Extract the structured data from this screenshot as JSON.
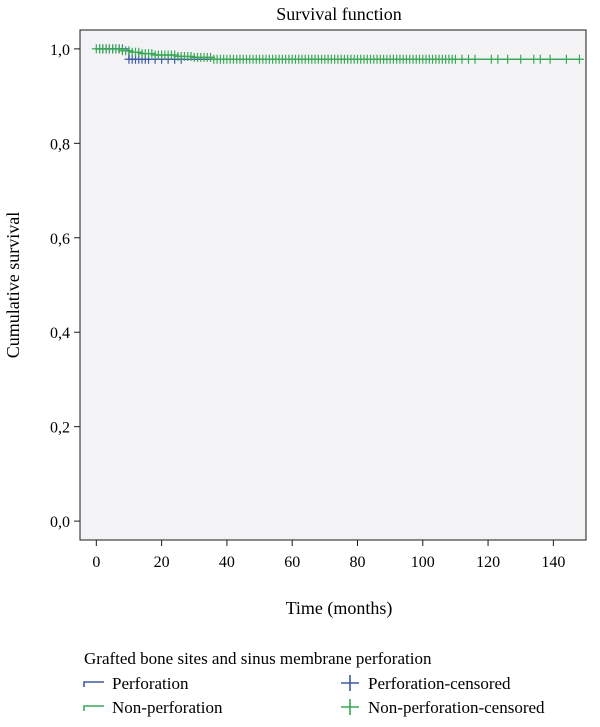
{
  "chart_data": {
    "type": "line",
    "title": "Survival function",
    "xlabel": "Time (months)",
    "ylabel": "Cumulative survival",
    "xlim": [
      -5,
      150
    ],
    "ylim": [
      -0.04,
      1.04
    ],
    "x_ticks": [
      0,
      20,
      40,
      60,
      80,
      100,
      120,
      140
    ],
    "x_tick_labels": [
      "0",
      "20",
      "40",
      "60",
      "80",
      "100",
      "120",
      "140"
    ],
    "y_ticks": [
      0.0,
      0.2,
      0.4,
      0.6,
      0.8,
      1.0
    ],
    "y_tick_labels": [
      "0,0",
      "0,2",
      "0,4",
      "0,6",
      "0,8",
      "1,0"
    ],
    "grid": false,
    "plot_background": "#f3f3f5",
    "legend": {
      "title": "Grafted bone sites and sinus membrane perforation",
      "placement": "bottom",
      "entries": [
        {
          "label": "Perforation",
          "kind": "step",
          "color": "#3f58a8"
        },
        {
          "label": "Perforation-censored",
          "kind": "censor",
          "color": "#3f58a8"
        },
        {
          "label": "Non-perforation",
          "kind": "step",
          "color": "#3aa857"
        },
        {
          "label": "Non-perforation-censored",
          "kind": "censor",
          "color": "#3aa857"
        }
      ]
    },
    "series": [
      {
        "name": "Perforation",
        "color": "#3f58a8",
        "step_x": [
          0,
          9,
          10,
          148
        ],
        "step_y": [
          1.0,
          1.0,
          0.978,
          0.978
        ],
        "censored_x": [
          1,
          2,
          3,
          4,
          5,
          6,
          7,
          8,
          10,
          11,
          12,
          13,
          14,
          15,
          16,
          18,
          20,
          22,
          24,
          26
        ],
        "censored_y": [
          1.0,
          1.0,
          1.0,
          1.0,
          1.0,
          1.0,
          1.0,
          1.0,
          0.978,
          0.978,
          0.978,
          0.978,
          0.978,
          0.978,
          0.978,
          0.978,
          0.978,
          0.978,
          0.978,
          0.978
        ]
      },
      {
        "name": "Non-perforation",
        "color": "#3aa857",
        "step_x": [
          0,
          7,
          9,
          11,
          14,
          18,
          25,
          30,
          36,
          148
        ],
        "step_y": [
          1.0,
          1.0,
          0.996,
          0.993,
          0.99,
          0.987,
          0.984,
          0.982,
          0.978,
          0.978
        ],
        "censored_x": [
          0,
          1,
          2,
          3,
          4,
          5,
          6,
          7,
          8,
          9,
          10,
          11,
          12,
          13,
          14,
          15,
          16,
          17,
          18,
          19,
          20,
          21,
          22,
          23,
          24,
          25,
          26,
          27,
          28,
          29,
          30,
          31,
          32,
          33,
          34,
          35,
          36,
          37,
          38,
          39,
          40,
          41,
          42,
          43,
          44,
          45,
          46,
          47,
          48,
          49,
          50,
          51,
          52,
          53,
          54,
          55,
          56,
          57,
          58,
          59,
          60,
          61,
          62,
          63,
          64,
          65,
          66,
          67,
          68,
          69,
          70,
          71,
          72,
          73,
          74,
          75,
          76,
          77,
          78,
          79,
          80,
          81,
          82,
          83,
          84,
          85,
          86,
          87,
          88,
          89,
          90,
          91,
          92,
          93,
          94,
          95,
          96,
          97,
          98,
          99,
          100,
          101,
          102,
          103,
          104,
          105,
          106,
          107,
          108,
          109,
          110,
          112,
          114,
          116,
          121,
          123,
          126,
          130,
          134,
          136,
          139,
          144,
          148
        ],
        "censored_y": [
          1.0,
          1.0,
          1.0,
          1.0,
          1.0,
          1.0,
          1.0,
          1.0,
          0.996,
          0.996,
          0.996,
          0.993,
          0.993,
          0.993,
          0.99,
          0.99,
          0.99,
          0.99,
          0.987,
          0.987,
          0.987,
          0.987,
          0.987,
          0.987,
          0.987,
          0.984,
          0.984,
          0.984,
          0.984,
          0.984,
          0.982,
          0.982,
          0.982,
          0.982,
          0.982,
          0.982,
          0.978,
          0.978,
          0.978,
          0.978,
          0.978,
          0.978,
          0.978,
          0.978,
          0.978,
          0.978,
          0.978,
          0.978,
          0.978,
          0.978,
          0.978,
          0.978,
          0.978,
          0.978,
          0.978,
          0.978,
          0.978,
          0.978,
          0.978,
          0.978,
          0.978,
          0.978,
          0.978,
          0.978,
          0.978,
          0.978,
          0.978,
          0.978,
          0.978,
          0.978,
          0.978,
          0.978,
          0.978,
          0.978,
          0.978,
          0.978,
          0.978,
          0.978,
          0.978,
          0.978,
          0.978,
          0.978,
          0.978,
          0.978,
          0.978,
          0.978,
          0.978,
          0.978,
          0.978,
          0.978,
          0.978,
          0.978,
          0.978,
          0.978,
          0.978,
          0.978,
          0.978,
          0.978,
          0.978,
          0.978,
          0.978,
          0.978,
          0.978,
          0.978,
          0.978,
          0.978,
          0.978,
          0.978,
          0.978,
          0.978,
          0.978,
          0.978,
          0.978,
          0.978,
          0.978,
          0.978,
          0.978,
          0.978,
          0.978,
          0.978,
          0.978,
          0.978,
          0.978
        ]
      }
    ]
  }
}
